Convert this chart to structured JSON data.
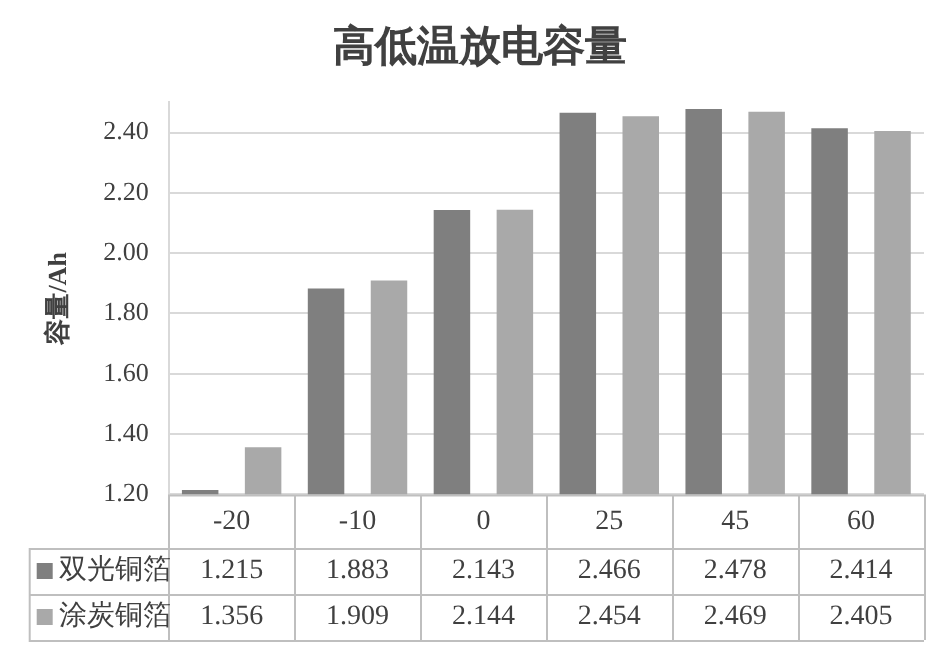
{
  "chart_data": {
    "type": "bar",
    "title": "高低温放电容量",
    "ylabel": "容量/Ah",
    "categories": [
      "-20",
      "-10",
      "0",
      "25",
      "45",
      "60"
    ],
    "series": [
      {
        "name": "双光铜箔",
        "color": "#7f7f7f",
        "values": [
          1.215,
          1.883,
          2.143,
          2.466,
          2.478,
          2.414
        ]
      },
      {
        "name": "涂炭铜箔",
        "color": "#a9a9a9",
        "values": [
          1.356,
          1.909,
          2.144,
          2.454,
          2.469,
          2.405
        ]
      }
    ],
    "ylim": [
      1.2,
      2.5
    ],
    "yticks": [
      {
        "value": 1.2,
        "label": "1.20"
      },
      {
        "value": 1.4,
        "label": "1.40"
      },
      {
        "value": 1.6,
        "label": "1.60"
      },
      {
        "value": 1.8,
        "label": "1.80"
      },
      {
        "value": 2.0,
        "label": "2.00"
      },
      {
        "value": 2.2,
        "label": "2.20"
      },
      {
        "value": 2.4,
        "label": "2.40"
      }
    ],
    "grid": "y",
    "legend": "bottom left",
    "data_labels": true
  }
}
